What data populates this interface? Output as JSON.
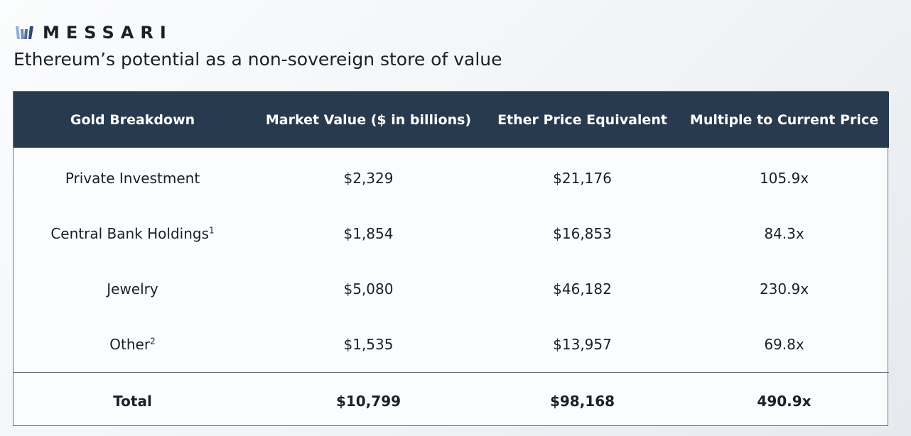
{
  "logo": {
    "wordmark": "MESSARI",
    "icon": "messari-logo-icon",
    "accent_color": "#6e8fb6"
  },
  "subtitle": "Ethereum’s potential as a non-sovereign store of value",
  "colors": {
    "header_bg": "#283a4e",
    "header_text": "#ffffff",
    "border": "#6b7380"
  },
  "chart_data": {
    "type": "table",
    "columns": [
      "Gold Breakdown",
      "Market Value ($ in billions)",
      "Ether Price Equivalent",
      "Multiple to Current Price"
    ],
    "rows": [
      {
        "label": "Private Investment",
        "footnote": "",
        "market_value": "$2,329",
        "ether_price": "$21,176",
        "multiple": "105.9x"
      },
      {
        "label": "Central Bank Holdings",
        "footnote": "1",
        "market_value": "$1,854",
        "ether_price": "$16,853",
        "multiple": "84.3x"
      },
      {
        "label": "Jewelry",
        "footnote": "",
        "market_value": "$5,080",
        "ether_price": "$46,182",
        "multiple": "230.9x"
      },
      {
        "label": "Other",
        "footnote": "2",
        "market_value": "$1,535",
        "ether_price": "$13,957",
        "multiple": "69.8x"
      }
    ],
    "total": {
      "label": "Total",
      "market_value": "$10,799",
      "ether_price": "$98,168",
      "multiple": "490.9x"
    }
  }
}
